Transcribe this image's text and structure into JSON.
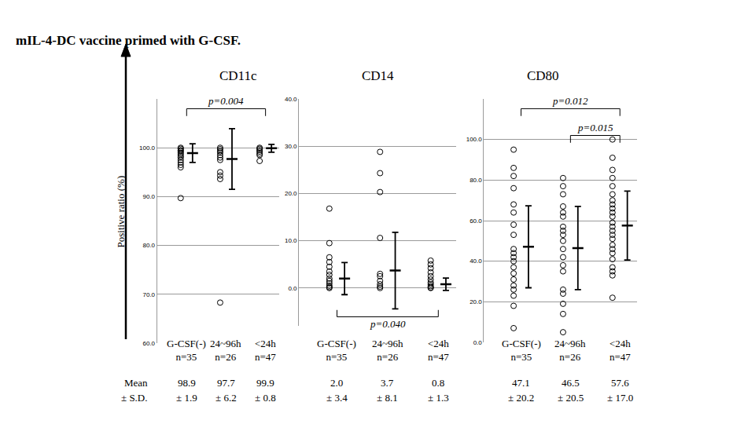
{
  "title": "mIL-4-DC vaccine primed with G-CSF.",
  "ylabel": "Positive ratio (%)",
  "row_labels": [
    "Mean",
    "± S.D."
  ],
  "chart_data": [
    {
      "type": "scatter",
      "title": "CD11c",
      "categories": [
        "G-CSF(-)",
        "24~96h",
        "<24h"
      ],
      "group_labels": [
        "n=35",
        "n=26",
        "n=47"
      ],
      "values": [
        [
          100,
          99.8,
          99.5,
          99.3,
          99,
          98.7,
          98.3,
          98,
          97.5,
          97,
          96.5,
          96,
          89.7
        ],
        [
          100,
          99.7,
          99.3,
          99,
          98.5,
          98,
          97.5,
          95,
          94.3,
          93.6,
          68.3
        ],
        [
          100,
          99.8,
          99.5,
          99.2,
          98.8,
          98.5,
          97.3
        ]
      ],
      "mean": [
        98.9,
        97.7,
        99.9
      ],
      "mean_labels": [
        "98.9",
        "97.7",
        "99.9"
      ],
      "sd": [
        1.9,
        6.2,
        0.8
      ],
      "sd_labels": [
        "± 1.9",
        "± 6.2",
        "± 0.8"
      ],
      "ylim": [
        60,
        110
      ],
      "yticks": [
        {
          "value": 60,
          "label": "60.0"
        },
        {
          "value": 70,
          "label": "70.0"
        },
        {
          "value": 80,
          "label": "80.0"
        },
        {
          "value": 90,
          "label": "90.0"
        },
        {
          "value": 100,
          "label": "100.0"
        }
      ],
      "comparisons": [
        {
          "groups": [
            0,
            2
          ],
          "label": "p=0.004",
          "side": "top"
        }
      ],
      "grid": true,
      "marker": "circle-open",
      "color": "#000000"
    },
    {
      "type": "scatter",
      "title": "CD14",
      "categories": [
        "G-CSF(-)",
        "24~96h",
        "<24h"
      ],
      "group_labels": [
        "n=35",
        "n=26",
        "n=47"
      ],
      "values": [
        [
          16.8,
          9.5,
          6.5,
          5.5,
          4.5,
          3.5,
          2.8,
          2,
          1.5,
          1,
          0.5,
          0.2,
          0
        ],
        [
          28.8,
          24.3,
          20.3,
          10.6,
          3,
          2.5,
          1.5,
          0.8,
          0.3,
          0
        ],
        [
          5.8,
          5,
          4.2,
          3.3,
          2.5,
          1.8,
          1.2,
          0.8,
          0.4,
          0.1,
          0
        ]
      ],
      "mean": [
        2.0,
        3.7,
        0.8
      ],
      "mean_labels": [
        "2.0",
        "3.7",
        "0.8"
      ],
      "sd": [
        3.4,
        8.1,
        1.3
      ],
      "sd_labels": [
        "± 3.4",
        "± 8.1",
        "± 1.3"
      ],
      "ylim": [
        -8,
        40
      ],
      "yticks": [
        {
          "value": 0,
          "label": "0.0"
        },
        {
          "value": 10,
          "label": "10.0"
        },
        {
          "value": 20,
          "label": "20.0"
        },
        {
          "value": 30,
          "label": "30.0"
        },
        {
          "value": 40,
          "label": "40.0"
        }
      ],
      "comparisons": [
        {
          "groups": [
            0,
            2
          ],
          "label": "p=0.040",
          "side": "bottom"
        }
      ],
      "grid": true,
      "marker": "circle-open",
      "color": "#000000"
    },
    {
      "type": "scatter",
      "title": "CD80",
      "categories": [
        "G-CSF(-)",
        "24~96h",
        "<24h"
      ],
      "group_labels": [
        "n=35",
        "n=26",
        "n=47"
      ],
      "values": [
        [
          95,
          86,
          82,
          76,
          68,
          64,
          58,
          53,
          46,
          44,
          42,
          40,
          37,
          34,
          31,
          28,
          26,
          23,
          18,
          7
        ],
        [
          81,
          77,
          73,
          67,
          64,
          62,
          57,
          55,
          53,
          50,
          46,
          42,
          38,
          35,
          26,
          24,
          19,
          14,
          5
        ],
        [
          100,
          91,
          85,
          81,
          77,
          73,
          70,
          68,
          66,
          64,
          62,
          59,
          57,
          55,
          53,
          51,
          48,
          46,
          44,
          41,
          37,
          35,
          33,
          22
        ]
      ],
      "mean": [
        47.1,
        46.5,
        57.6
      ],
      "mean_labels": [
        "47.1",
        "46.5",
        "57.6"
      ],
      "sd": [
        20.2,
        20.5,
        17.0
      ],
      "sd_labels": [
        "± 20.2",
        "± 20.5",
        "± 17.0"
      ],
      "ylim": [
        0,
        120
      ],
      "yticks": [
        {
          "value": 0,
          "label": "0.0"
        },
        {
          "value": 20,
          "label": "20.0"
        },
        {
          "value": 40,
          "label": "40.0"
        },
        {
          "value": 60,
          "label": "60.0"
        },
        {
          "value": 80,
          "label": "80.0"
        },
        {
          "value": 100,
          "label": "100.0"
        }
      ],
      "comparisons": [
        {
          "groups": [
            0,
            2
          ],
          "label": "p=0.012",
          "side": "top"
        },
        {
          "groups": [
            1,
            2
          ],
          "label": "p=0.015",
          "side": "top"
        }
      ],
      "grid": true,
      "marker": "circle-open",
      "color": "#000000"
    }
  ]
}
